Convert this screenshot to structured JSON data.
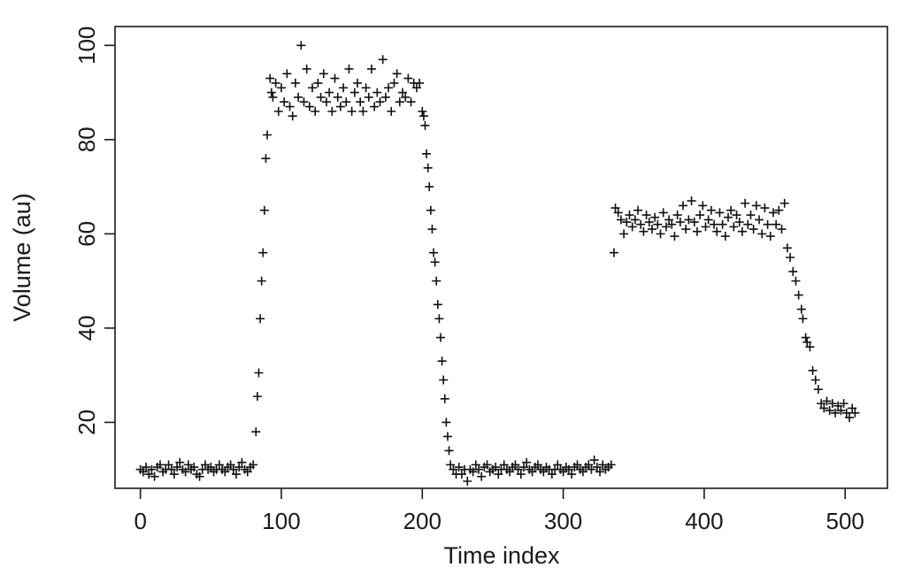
{
  "chart_data": {
    "type": "scatter",
    "title": "",
    "xlabel": "Time index",
    "ylabel": "Volume (au)",
    "xlim": [
      -18,
      530
    ],
    "ylim": [
      6,
      104
    ],
    "x_ticks": [
      0,
      100,
      200,
      300,
      400,
      500
    ],
    "y_ticks": [
      20,
      40,
      60,
      80,
      100
    ],
    "x_tick_labels": [
      "0",
      "100",
      "200",
      "300",
      "400",
      "500"
    ],
    "y_tick_labels": [
      "20",
      "40",
      "60",
      "80",
      "100"
    ],
    "marker": "plus",
    "grid": false,
    "legend": "none",
    "colors": {
      "points": "#111111",
      "axes": "#1a1a1a",
      "background": "#ffffff"
    },
    "series": [
      {
        "points": [
          [
            0,
            10
          ],
          [
            2,
            9.5
          ],
          [
            4,
            10.5
          ],
          [
            6,
            9
          ],
          [
            8,
            10
          ],
          [
            10,
            8.5
          ],
          [
            12,
            10.5
          ],
          [
            14,
            11
          ],
          [
            16,
            9.5
          ],
          [
            18,
            10
          ],
          [
            20,
            11
          ],
          [
            22,
            10
          ],
          [
            24,
            9
          ],
          [
            26,
            10.5
          ],
          [
            28,
            11.5
          ],
          [
            30,
            10
          ],
          [
            32,
            9.5
          ],
          [
            34,
            11
          ],
          [
            36,
            10
          ],
          [
            38,
            10.5
          ],
          [
            40,
            9
          ],
          [
            42,
            8.5
          ],
          [
            44,
            10
          ],
          [
            46,
            11
          ],
          [
            48,
            10
          ],
          [
            50,
            10.5
          ],
          [
            52,
            9.5
          ],
          [
            54,
            10
          ],
          [
            56,
            11
          ],
          [
            58,
            10
          ],
          [
            60,
            9.5
          ],
          [
            62,
            10.5
          ],
          [
            64,
            11
          ],
          [
            66,
            10
          ],
          [
            68,
            9
          ],
          [
            70,
            10.5
          ],
          [
            72,
            11.5
          ],
          [
            74,
            10
          ],
          [
            76,
            9.5
          ],
          [
            78,
            10.5
          ],
          [
            80,
            11
          ],
          [
            82,
            18
          ],
          [
            83,
            25.5
          ],
          [
            84,
            30.5
          ],
          [
            85,
            42
          ],
          [
            86,
            50
          ],
          [
            87,
            56
          ],
          [
            88,
            65
          ],
          [
            89,
            76
          ],
          [
            90,
            81
          ],
          [
            92,
            93
          ],
          [
            93,
            90
          ],
          [
            94,
            89
          ],
          [
            96,
            92
          ],
          [
            98,
            86
          ],
          [
            100,
            91
          ],
          [
            102,
            88
          ],
          [
            104,
            94
          ],
          [
            106,
            87
          ],
          [
            108,
            85
          ],
          [
            110,
            92
          ],
          [
            112,
            89
          ],
          [
            114,
            100
          ],
          [
            116,
            88
          ],
          [
            118,
            95
          ],
          [
            120,
            87
          ],
          [
            122,
            91
          ],
          [
            124,
            86
          ],
          [
            126,
            92
          ],
          [
            128,
            89
          ],
          [
            130,
            94
          ],
          [
            132,
            88
          ],
          [
            134,
            90
          ],
          [
            136,
            86
          ],
          [
            138,
            93
          ],
          [
            140,
            89
          ],
          [
            142,
            87
          ],
          [
            144,
            91
          ],
          [
            146,
            88
          ],
          [
            148,
            95
          ],
          [
            150,
            86
          ],
          [
            152,
            90
          ],
          [
            154,
            92
          ],
          [
            156,
            88
          ],
          [
            158,
            86
          ],
          [
            160,
            91
          ],
          [
            162,
            89
          ],
          [
            164,
            95
          ],
          [
            166,
            87
          ],
          [
            168,
            90
          ],
          [
            170,
            88
          ],
          [
            172,
            97
          ],
          [
            174,
            89
          ],
          [
            176,
            91
          ],
          [
            178,
            86
          ],
          [
            180,
            92
          ],
          [
            182,
            94
          ],
          [
            184,
            88
          ],
          [
            186,
            90
          ],
          [
            188,
            89
          ],
          [
            190,
            93
          ],
          [
            192,
            88
          ],
          [
            194,
            92
          ],
          [
            196,
            91
          ],
          [
            198,
            92
          ],
          [
            200,
            86
          ],
          [
            201,
            85
          ],
          [
            202,
            83
          ],
          [
            203,
            77
          ],
          [
            204,
            74
          ],
          [
            205,
            70
          ],
          [
            206,
            65
          ],
          [
            207,
            61
          ],
          [
            208,
            56
          ],
          [
            209,
            54
          ],
          [
            210,
            50
          ],
          [
            211,
            45
          ],
          [
            212,
            42
          ],
          [
            213,
            38
          ],
          [
            214,
            33
          ],
          [
            215,
            29
          ],
          [
            216,
            25
          ],
          [
            217,
            20
          ],
          [
            218,
            17
          ],
          [
            219,
            14
          ],
          [
            220,
            11
          ],
          [
            222,
            10
          ],
          [
            224,
            9
          ],
          [
            226,
            10.5
          ],
          [
            228,
            9
          ],
          [
            230,
            10
          ],
          [
            232,
            7.5
          ],
          [
            234,
            10
          ],
          [
            236,
            9.5
          ],
          [
            238,
            11
          ],
          [
            240,
            10
          ],
          [
            242,
            8.5
          ],
          [
            244,
            10.5
          ],
          [
            246,
            11
          ],
          [
            248,
            9.5
          ],
          [
            250,
            10
          ],
          [
            252,
            10.5
          ],
          [
            254,
            9
          ],
          [
            256,
            10
          ],
          [
            258,
            11
          ],
          [
            260,
            10
          ],
          [
            262,
            9.5
          ],
          [
            264,
            10.5
          ],
          [
            266,
            11
          ],
          [
            268,
            10
          ],
          [
            270,
            9
          ],
          [
            272,
            10.5
          ],
          [
            274,
            11.5
          ],
          [
            276,
            10
          ],
          [
            278,
            9.5
          ],
          [
            280,
            10.5
          ],
          [
            282,
            11
          ],
          [
            284,
            10
          ],
          [
            286,
            9.5
          ],
          [
            288,
            10.5
          ],
          [
            290,
            10
          ],
          [
            292,
            9
          ],
          [
            294,
            10
          ],
          [
            296,
            11
          ],
          [
            298,
            10
          ],
          [
            300,
            9.5
          ],
          [
            302,
            10.5
          ],
          [
            304,
            10
          ],
          [
            306,
            9
          ],
          [
            308,
            10.5
          ],
          [
            310,
            11
          ],
          [
            312,
            10
          ],
          [
            314,
            9.5
          ],
          [
            316,
            10.5
          ],
          [
            318,
            11
          ],
          [
            320,
            10
          ],
          [
            322,
            12
          ],
          [
            324,
            10.5
          ],
          [
            326,
            9.5
          ],
          [
            328,
            11
          ],
          [
            330,
            10
          ],
          [
            332,
            10.5
          ],
          [
            334,
            11
          ],
          [
            336,
            56
          ],
          [
            337,
            65.5
          ],
          [
            339,
            64.5
          ],
          [
            341,
            63
          ],
          [
            343,
            60
          ],
          [
            345,
            62.5
          ],
          [
            347,
            64
          ],
          [
            349,
            61.5
          ],
          [
            351,
            63
          ],
          [
            353,
            65
          ],
          [
            355,
            62
          ],
          [
            357,
            60.5
          ],
          [
            359,
            64
          ],
          [
            361,
            62.5
          ],
          [
            363,
            61
          ],
          [
            365,
            63.5
          ],
          [
            367,
            62
          ],
          [
            369,
            60
          ],
          [
            371,
            64.5
          ],
          [
            373,
            61.5
          ],
          [
            375,
            63
          ],
          [
            377,
            62
          ],
          [
            379,
            59.5
          ],
          [
            381,
            64
          ],
          [
            383,
            62.5
          ],
          [
            385,
            66
          ],
          [
            387,
            61
          ],
          [
            389,
            63
          ],
          [
            391,
            67
          ],
          [
            393,
            62.5
          ],
          [
            395,
            60.5
          ],
          [
            397,
            64
          ],
          [
            399,
            66
          ],
          [
            401,
            61.5
          ],
          [
            403,
            63
          ],
          [
            405,
            65
          ],
          [
            407,
            62
          ],
          [
            409,
            60.5
          ],
          [
            411,
            64.5
          ],
          [
            413,
            62
          ],
          [
            415,
            59.5
          ],
          [
            417,
            63.5
          ],
          [
            419,
            65
          ],
          [
            421,
            61.5
          ],
          [
            423,
            64
          ],
          [
            425,
            62.5
          ],
          [
            427,
            60.5
          ],
          [
            429,
            66.5
          ],
          [
            431,
            62
          ],
          [
            433,
            64
          ],
          [
            435,
            61
          ],
          [
            437,
            66
          ],
          [
            439,
            63
          ],
          [
            441,
            60
          ],
          [
            443,
            65.5
          ],
          [
            445,
            62
          ],
          [
            447,
            59.5
          ],
          [
            449,
            64.5
          ],
          [
            451,
            62
          ],
          [
            453,
            65
          ],
          [
            455,
            61
          ],
          [
            457,
            66.5
          ],
          [
            459,
            57
          ],
          [
            461,
            55
          ],
          [
            463,
            52
          ],
          [
            465,
            50
          ],
          [
            467,
            47
          ],
          [
            469,
            44
          ],
          [
            470,
            42
          ],
          [
            472,
            38
          ],
          [
            473,
            37
          ],
          [
            475,
            36
          ],
          [
            477,
            31
          ],
          [
            479,
            29
          ],
          [
            481,
            27
          ],
          [
            483,
            24
          ],
          [
            485,
            23
          ],
          [
            487,
            24.5
          ],
          [
            489,
            22.5
          ],
          [
            491,
            24
          ],
          [
            493,
            22
          ],
          [
            495,
            23.5
          ],
          [
            497,
            22.5
          ],
          [
            499,
            24
          ],
          [
            501,
            22
          ],
          [
            503,
            21
          ],
          [
            505,
            23
          ],
          [
            507,
            22
          ]
        ]
      }
    ]
  }
}
